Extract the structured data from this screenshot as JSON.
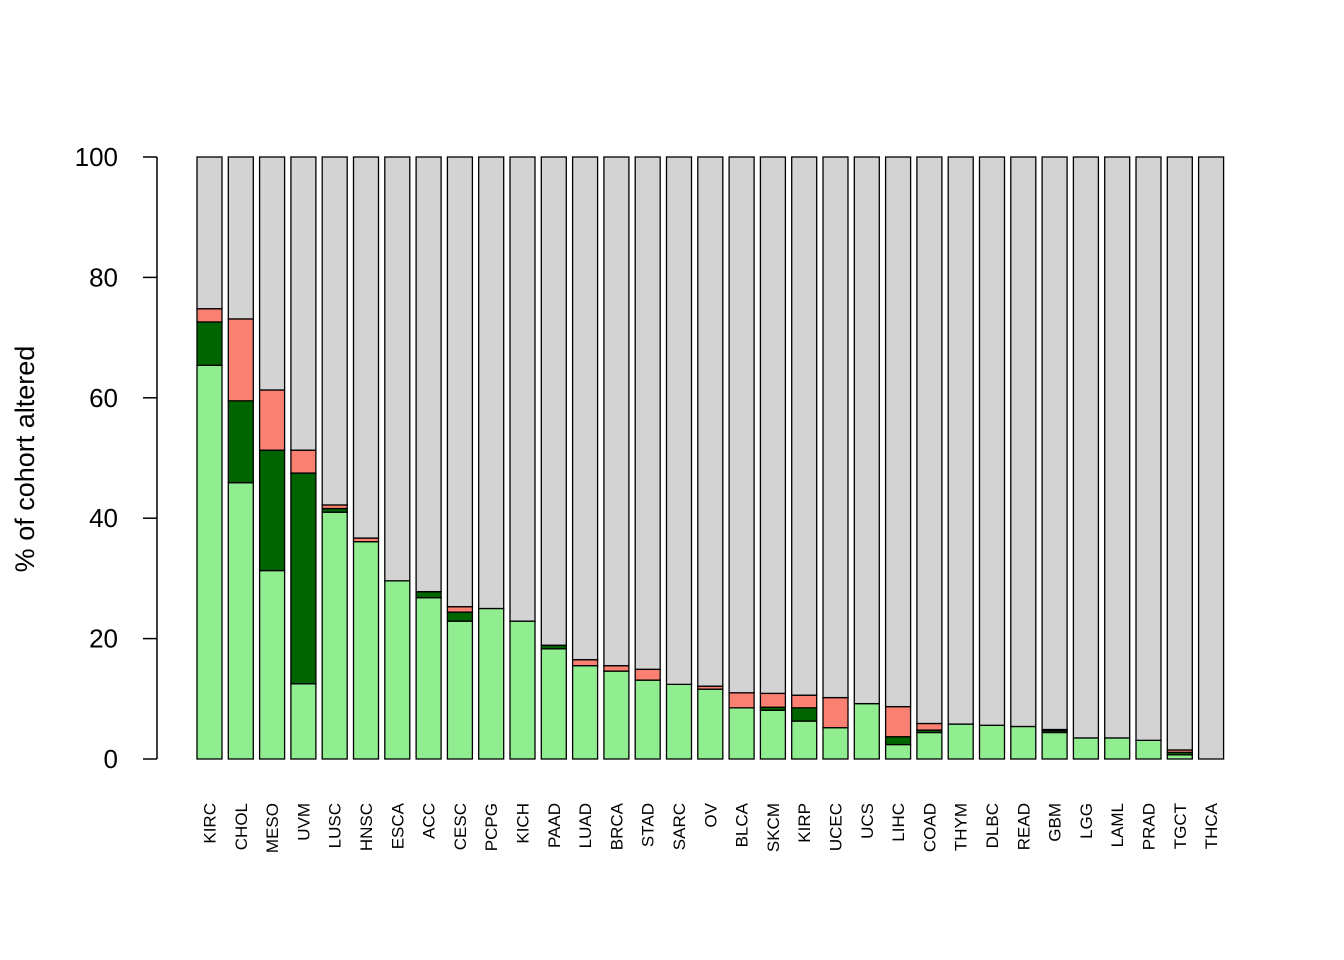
{
  "chart_data": {
    "type": "bar",
    "stacked": true,
    "ylabel": "% of cohort altered",
    "ylim": [
      0,
      100
    ],
    "yticks": [
      0,
      20,
      40,
      60,
      80,
      100
    ],
    "grid": false,
    "legend": "none",
    "categories": [
      "KIRC",
      "CHOL",
      "MESO",
      "UVM",
      "LUSC",
      "HNSC",
      "ESCA",
      "ACC",
      "CESC",
      "PCPG",
      "KICH",
      "PAAD",
      "LUAD",
      "BRCA",
      "STAD",
      "SARC",
      "OV",
      "BLCA",
      "SKCM",
      "KIRP",
      "UCEC",
      "UCS",
      "LIHC",
      "COAD",
      "THYM",
      "DLBC",
      "READ",
      "GBM",
      "LGG",
      "LAML",
      "PRAD",
      "TGCT",
      "THCA"
    ],
    "series": [
      {
        "color": "#90ee90",
        "values": [
          65.4,
          45.9,
          31.3,
          12.5,
          41.0,
          36.1,
          29.6,
          26.8,
          22.9,
          25.0,
          22.9,
          18.3,
          15.5,
          14.6,
          13.1,
          12.4,
          11.6,
          8.5,
          8.1,
          6.3,
          5.2,
          9.2,
          2.4,
          4.4,
          5.8,
          5.6,
          5.4,
          4.4,
          3.5,
          3.5,
          3.1,
          0.7,
          0.0
        ]
      },
      {
        "color": "#006400",
        "values": [
          7.2,
          13.6,
          20.0,
          35.0,
          0.6,
          0.0,
          0.0,
          1.0,
          1.5,
          0.0,
          0.0,
          0.6,
          0.0,
          0.0,
          0.0,
          0.0,
          0.0,
          0.0,
          0.5,
          2.2,
          0.0,
          0.0,
          1.3,
          0.4,
          0.0,
          0.0,
          0.0,
          0.3,
          0.0,
          0.0,
          0.0,
          0.4,
          0.0
        ]
      },
      {
        "color": "#fa8072",
        "values": [
          2.2,
          13.6,
          10.0,
          3.8,
          0.6,
          0.6,
          0.0,
          0.0,
          0.9,
          0.0,
          0.0,
          0.0,
          1.0,
          0.9,
          1.8,
          0.0,
          0.5,
          2.5,
          2.3,
          2.1,
          5.0,
          0.0,
          5.0,
          1.1,
          0.0,
          0.0,
          0.0,
          0.2,
          0.0,
          0.0,
          0.0,
          0.4,
          0.0
        ]
      }
    ],
    "remainder_color": "#d3d3d3"
  }
}
